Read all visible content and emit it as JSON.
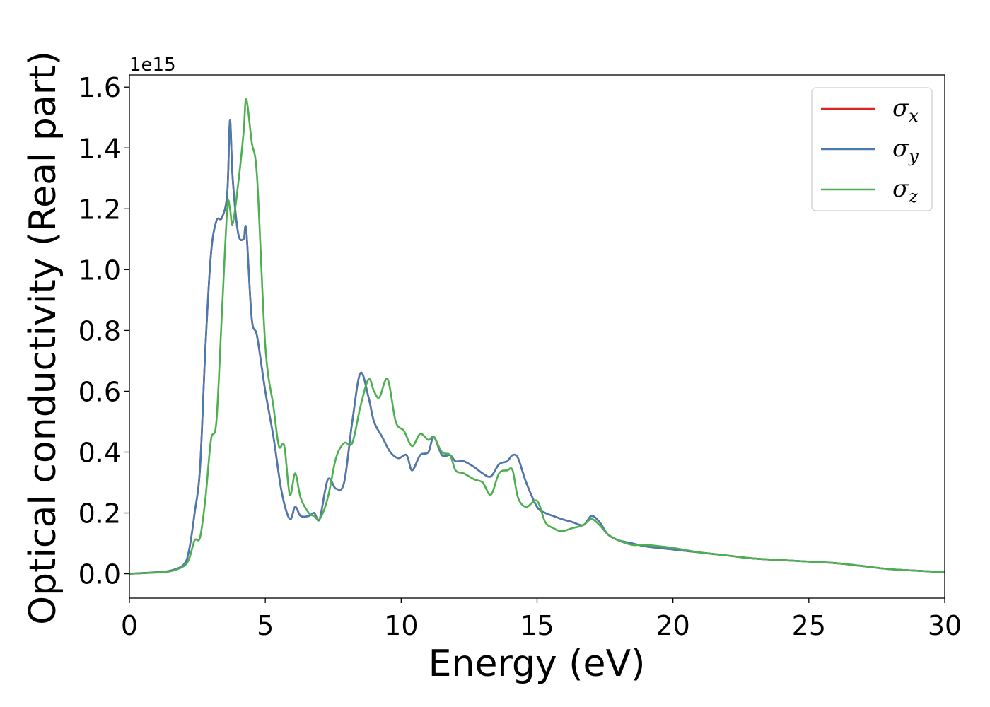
{
  "chart_data": {
    "type": "line",
    "title": "",
    "xlabel": "Energy (eV)",
    "ylabel": "Optical conductivity (Real part)",
    "y_offset_text": "1e15",
    "xlim": [
      0,
      30
    ],
    "ylim": [
      -0.08,
      1.64
    ],
    "x_ticks": [
      0,
      5,
      10,
      15,
      20,
      25,
      30
    ],
    "x_tick_labels": [
      "0",
      "5",
      "10",
      "15",
      "20",
      "25",
      "30"
    ],
    "y_ticks": [
      0.0,
      0.2,
      0.4,
      0.6,
      0.8,
      1.0,
      1.2,
      1.4,
      1.6
    ],
    "y_tick_labels": [
      "0.0",
      "0.2",
      "0.4",
      "0.6",
      "0.8",
      "1.0",
      "1.2",
      "1.4",
      "1.6"
    ],
    "grid": false,
    "legend_position": "top-right",
    "series": [
      {
        "name": "σx",
        "symbol": "σ",
        "subscript": "x",
        "color": "#d62728",
        "x": [
          0,
          1,
          1.5,
          2,
          2.2,
          2.4,
          2.6,
          2.8,
          3.0,
          3.2,
          3.4,
          3.6,
          3.7,
          3.8,
          4.0,
          4.2,
          4.3,
          4.5,
          4.7,
          5.0,
          5.3,
          5.6,
          5.9,
          6.1,
          6.3,
          6.6,
          6.8,
          7.0,
          7.3,
          7.6,
          7.9,
          8.2,
          8.5,
          8.8,
          9.0,
          9.3,
          9.6,
          9.9,
          10.2,
          10.4,
          10.7,
          11.0,
          11.2,
          11.5,
          11.8,
          12.0,
          12.3,
          12.7,
          13.0,
          13.3,
          13.6,
          13.9,
          14.1,
          14.3,
          14.6,
          15.0,
          15.3,
          15.6,
          15.9,
          16.3,
          16.7,
          17.0,
          17.3,
          17.6,
          18.0,
          18.5,
          19.0,
          20.0,
          21.0,
          22.0,
          23.0,
          24.0,
          25.0,
          26.0,
          27.0,
          28.0,
          29.0,
          30.0
        ],
        "y": [
          0,
          0.005,
          0.01,
          0.03,
          0.08,
          0.2,
          0.35,
          0.75,
          1.05,
          1.16,
          1.17,
          1.25,
          1.49,
          1.3,
          1.12,
          1.1,
          1.13,
          0.84,
          0.78,
          0.6,
          0.45,
          0.27,
          0.18,
          0.22,
          0.19,
          0.19,
          0.2,
          0.18,
          0.31,
          0.28,
          0.3,
          0.5,
          0.66,
          0.58,
          0.5,
          0.45,
          0.4,
          0.38,
          0.39,
          0.34,
          0.39,
          0.4,
          0.45,
          0.39,
          0.39,
          0.37,
          0.37,
          0.35,
          0.33,
          0.32,
          0.36,
          0.37,
          0.39,
          0.38,
          0.3,
          0.22,
          0.2,
          0.19,
          0.18,
          0.17,
          0.16,
          0.19,
          0.17,
          0.13,
          0.11,
          0.1,
          0.09,
          0.08,
          0.07,
          0.06,
          0.05,
          0.045,
          0.04,
          0.035,
          0.025,
          0.015,
          0.01,
          0.005
        ]
      },
      {
        "name": "σy",
        "symbol": "σ",
        "subscript": "y",
        "color": "#4a7ab0",
        "x": [
          0,
          1,
          1.5,
          2,
          2.2,
          2.4,
          2.6,
          2.8,
          3.0,
          3.2,
          3.4,
          3.6,
          3.7,
          3.8,
          4.0,
          4.2,
          4.3,
          4.5,
          4.7,
          5.0,
          5.3,
          5.6,
          5.9,
          6.1,
          6.3,
          6.6,
          6.8,
          7.0,
          7.3,
          7.6,
          7.9,
          8.2,
          8.5,
          8.8,
          9.0,
          9.3,
          9.6,
          9.9,
          10.2,
          10.4,
          10.7,
          11.0,
          11.2,
          11.5,
          11.8,
          12.0,
          12.3,
          12.7,
          13.0,
          13.3,
          13.6,
          13.9,
          14.1,
          14.3,
          14.6,
          15.0,
          15.3,
          15.6,
          15.9,
          16.3,
          16.7,
          17.0,
          17.3,
          17.6,
          18.0,
          18.5,
          19.0,
          20.0,
          21.0,
          22.0,
          23.0,
          24.0,
          25.0,
          26.0,
          27.0,
          28.0,
          29.0,
          30.0
        ],
        "y": [
          0,
          0.005,
          0.01,
          0.03,
          0.08,
          0.2,
          0.35,
          0.75,
          1.05,
          1.16,
          1.17,
          1.25,
          1.49,
          1.3,
          1.12,
          1.1,
          1.13,
          0.84,
          0.78,
          0.6,
          0.45,
          0.27,
          0.18,
          0.22,
          0.19,
          0.19,
          0.2,
          0.18,
          0.31,
          0.28,
          0.3,
          0.5,
          0.66,
          0.58,
          0.5,
          0.45,
          0.4,
          0.38,
          0.39,
          0.34,
          0.39,
          0.4,
          0.45,
          0.39,
          0.39,
          0.37,
          0.37,
          0.35,
          0.33,
          0.32,
          0.36,
          0.37,
          0.39,
          0.38,
          0.3,
          0.22,
          0.2,
          0.19,
          0.18,
          0.17,
          0.16,
          0.19,
          0.17,
          0.13,
          0.11,
          0.1,
          0.09,
          0.08,
          0.07,
          0.06,
          0.05,
          0.045,
          0.04,
          0.035,
          0.025,
          0.015,
          0.01,
          0.005
        ]
      },
      {
        "name": "σz",
        "symbol": "σ",
        "subscript": "z",
        "color": "#4caf50",
        "x": [
          0,
          1,
          1.5,
          2,
          2.2,
          2.4,
          2.6,
          2.8,
          3.0,
          3.2,
          3.4,
          3.6,
          3.7,
          3.8,
          4.0,
          4.2,
          4.3,
          4.5,
          4.7,
          5.0,
          5.3,
          5.5,
          5.7,
          5.9,
          6.1,
          6.3,
          6.6,
          6.8,
          7.0,
          7.3,
          7.6,
          7.9,
          8.2,
          8.5,
          8.8,
          9.0,
          9.2,
          9.5,
          9.8,
          10.1,
          10.4,
          10.7,
          11.0,
          11.2,
          11.5,
          11.8,
          12.0,
          12.3,
          12.7,
          13.0,
          13.3,
          13.6,
          13.9,
          14.1,
          14.3,
          14.6,
          15.0,
          15.3,
          15.6,
          15.9,
          16.3,
          16.7,
          17.0,
          17.3,
          17.6,
          18.0,
          18.5,
          19.0,
          20.0,
          21.0,
          22.0,
          23.0,
          24.0,
          25.0,
          26.0,
          27.0,
          28.0,
          29.0,
          30.0
        ],
        "y": [
          0,
          0.004,
          0.008,
          0.025,
          0.05,
          0.11,
          0.12,
          0.25,
          0.44,
          0.5,
          0.85,
          1.2,
          1.2,
          1.15,
          1.28,
          1.45,
          1.56,
          1.42,
          1.3,
          0.75,
          0.55,
          0.42,
          0.42,
          0.26,
          0.33,
          0.25,
          0.2,
          0.19,
          0.18,
          0.25,
          0.38,
          0.43,
          0.43,
          0.55,
          0.64,
          0.6,
          0.58,
          0.64,
          0.5,
          0.47,
          0.42,
          0.46,
          0.44,
          0.45,
          0.4,
          0.39,
          0.34,
          0.33,
          0.31,
          0.3,
          0.26,
          0.33,
          0.34,
          0.34,
          0.25,
          0.22,
          0.24,
          0.17,
          0.15,
          0.14,
          0.15,
          0.16,
          0.18,
          0.16,
          0.13,
          0.11,
          0.095,
          0.095,
          0.085,
          0.07,
          0.06,
          0.05,
          0.045,
          0.04,
          0.035,
          0.025,
          0.015,
          0.01,
          0.005
        ]
      }
    ]
  }
}
